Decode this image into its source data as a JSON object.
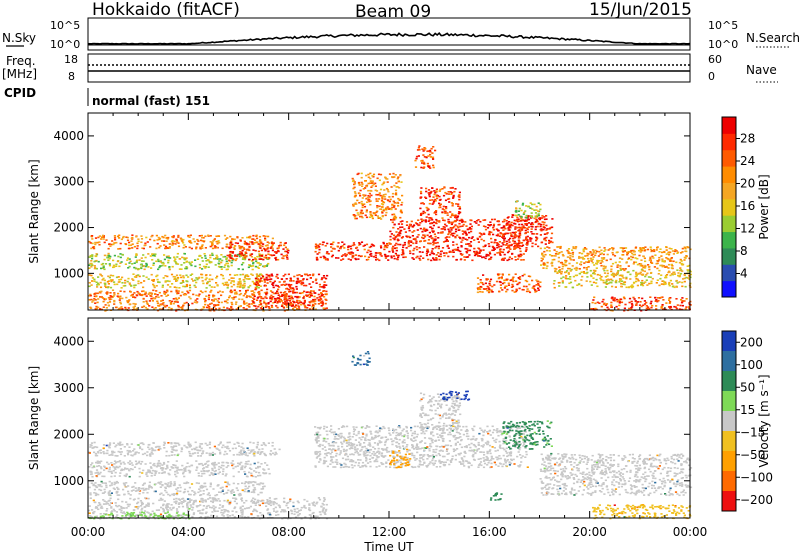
{
  "header": {
    "station": "Hokkaido (fitACF)",
    "beam": "Beam 09",
    "date": "15/Jun/2015"
  },
  "top_panels": {
    "nsky_label": "N.Sky",
    "nsky_top_tick": "10^5",
    "nsky_bottom_tick": "10^0",
    "nsearch_label": "N.Search",
    "freq_label_1": "Freq.",
    "freq_label_2": "[MHz]",
    "freq_tick_top": "18",
    "freq_tick_bottom": "8",
    "nave_tick_top": "60",
    "nave_tick_bottom": "0",
    "nave_label": "Nave",
    "cpid_label": "CPID",
    "cpid_value": "normal (fast) 151"
  },
  "chart_data": [
    {
      "type": "heatmap",
      "name": "power",
      "ylabel": "Slant Range [km]",
      "xlabel": "",
      "yticks": [
        "1000",
        "2000",
        "3000",
        "4000"
      ],
      "ylim": [
        200,
        4500
      ],
      "xlim_hours": [
        0,
        24
      ],
      "colorbar": {
        "label": "Power [dB]",
        "ticks": [
          "4",
          "8",
          "12",
          "16",
          "20",
          "24",
          "28"
        ],
        "colors": [
          "#1010ff",
          "#2a4db0",
          "#2e8b57",
          "#3cb44b",
          "#9acd32",
          "#e6c619",
          "#f5a623",
          "#ff8c00",
          "#ff5a00",
          "#ff2a00",
          "#ee0000"
        ]
      },
      "bands": [
        {
          "t0": 0.0,
          "t1": 7.6,
          "r0": 1550,
          "r1": 1850,
          "value": 22
        },
        {
          "t0": 0.0,
          "t1": 7.2,
          "r0": 1100,
          "r1": 1450,
          "value": 14
        },
        {
          "t0": 0.0,
          "t1": 7.0,
          "r0": 700,
          "r1": 1000,
          "value": 17
        },
        {
          "t0": 0.0,
          "t1": 9.5,
          "r0": 200,
          "r1": 650,
          "value": 23
        },
        {
          "t0": 5.5,
          "t1": 8.0,
          "r0": 1300,
          "r1": 1700,
          "value": 27
        },
        {
          "t0": 6.5,
          "t1": 9.5,
          "r0": 300,
          "r1": 1000,
          "value": 28
        },
        {
          "t0": 9.0,
          "t1": 12.0,
          "r0": 1300,
          "r1": 1700,
          "value": 27
        },
        {
          "t0": 12.0,
          "t1": 17.5,
          "r0": 1300,
          "r1": 2200,
          "value": 28
        },
        {
          "t0": 13.2,
          "t1": 14.8,
          "r0": 2100,
          "r1": 2900,
          "value": 27
        },
        {
          "t0": 13.0,
          "t1": 13.8,
          "r0": 3300,
          "r1": 3800,
          "value": 26
        },
        {
          "t0": 10.5,
          "t1": 12.5,
          "r0": 2200,
          "r1": 3200,
          "value": 22
        },
        {
          "t0": 16.5,
          "t1": 18.5,
          "r0": 1600,
          "r1": 2300,
          "value": 28
        },
        {
          "t0": 15.5,
          "t1": 18.0,
          "r0": 600,
          "r1": 1000,
          "value": 25
        },
        {
          "t0": 18.0,
          "t1": 24.0,
          "r0": 1100,
          "r1": 1600,
          "value": 20
        },
        {
          "t0": 18.5,
          "t1": 24.0,
          "r0": 700,
          "r1": 1100,
          "value": 17
        },
        {
          "t0": 20.0,
          "t1": 24.0,
          "r0": 200,
          "r1": 500,
          "value": 26
        },
        {
          "t0": 17.0,
          "t1": 18.0,
          "r0": 2200,
          "r1": 2600,
          "value": 14
        }
      ]
    },
    {
      "type": "heatmap",
      "name": "velocity",
      "ylabel": "Slant Range [km]",
      "xlabel": "Time UT",
      "xticks": [
        "00:00",
        "04:00",
        "08:00",
        "12:00",
        "16:00",
        "20:00",
        "00:00"
      ],
      "yticks": [
        "1000",
        "2000",
        "3000",
        "4000"
      ],
      "ylim": [
        200,
        4500
      ],
      "xlim_hours": [
        0,
        24
      ],
      "colorbar": {
        "label": "Velocity [m s⁻¹]",
        "ticks": [
          "200",
          "100",
          "50",
          "15",
          "−15",
          "−50",
          "−100",
          "−200"
        ],
        "colors": [
          "#1a3fb8",
          "#2e6fa0",
          "#2e8b57",
          "#7ed957",
          "#c8c8c8",
          "#f0c020",
          "#ffa000",
          "#ff6a00",
          "#ee1010"
        ]
      },
      "bands": [
        {
          "t0": 0.0,
          "t1": 7.6,
          "r0": 1550,
          "r1": 1850,
          "value": 0
        },
        {
          "t0": 0.0,
          "t1": 7.2,
          "r0": 1100,
          "r1": 1450,
          "value": 0
        },
        {
          "t0": 0.0,
          "t1": 7.0,
          "r0": 700,
          "r1": 1000,
          "value": 0
        },
        {
          "t0": 0.0,
          "t1": 9.5,
          "r0": 200,
          "r1": 650,
          "value": 0
        },
        {
          "t0": 9.0,
          "t1": 17.5,
          "r0": 1300,
          "r1": 2200,
          "value": 0
        },
        {
          "t0": 13.2,
          "t1": 14.8,
          "r0": 2100,
          "r1": 2900,
          "value": 0
        },
        {
          "t0": 16.5,
          "t1": 18.5,
          "r0": 1700,
          "r1": 2300,
          "value": 60
        },
        {
          "t0": 14.0,
          "t1": 15.2,
          "r0": 2750,
          "r1": 2950,
          "value": 210
        },
        {
          "t0": 10.5,
          "t1": 11.2,
          "r0": 3500,
          "r1": 3800,
          "value": 150
        },
        {
          "t0": 12.0,
          "t1": 12.8,
          "r0": 1300,
          "r1": 1700,
          "value": -60
        },
        {
          "t0": 16.0,
          "t1": 16.5,
          "r0": 600,
          "r1": 800,
          "value": 70
        },
        {
          "t0": 18.0,
          "t1": 24.0,
          "r0": 700,
          "r1": 1600,
          "value": 0
        },
        {
          "t0": 20.0,
          "t1": 24.0,
          "r0": 200,
          "r1": 500,
          "value": -40
        },
        {
          "t0": 0.0,
          "t1": 4.0,
          "r0": 200,
          "r1": 350,
          "value": 30
        }
      ]
    }
  ]
}
